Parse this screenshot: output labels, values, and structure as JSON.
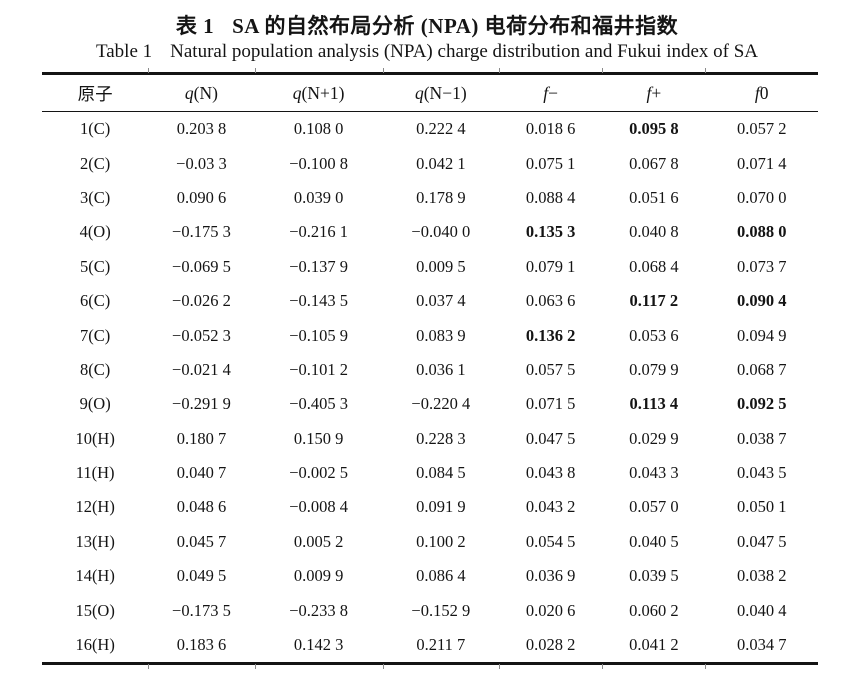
{
  "title_cn": {
    "label": "表 1",
    "text": "SA 的自然布局分析 (NPA) 电荷分布和福井指数"
  },
  "title_en": {
    "label": "Table 1",
    "text": "Natural population analysis (NPA) charge distribution and Fukui index of SA"
  },
  "table": {
    "headers": [
      {
        "italic": "",
        "text": "原子"
      },
      {
        "italic": "q",
        "text": "(N)"
      },
      {
        "italic": "q",
        "text": "(N+1)"
      },
      {
        "italic": "q",
        "text": "(N−1)"
      },
      {
        "italic": "f",
        "text": "−"
      },
      {
        "italic": "f",
        "text": "+"
      },
      {
        "italic": "f",
        "text": "0"
      }
    ],
    "rows": [
      {
        "atom": "1(C)",
        "values": [
          "0.203 8",
          "0.108 0",
          "0.222 4",
          "0.018 6",
          "0.095 8",
          "0.057 2"
        ],
        "bold": [
          4
        ]
      },
      {
        "atom": "2(C)",
        "values": [
          "−0.03 3",
          "−0.100 8",
          "0.042 1",
          "0.075 1",
          "0.067 8",
          "0.071 4"
        ],
        "bold": []
      },
      {
        "atom": "3(C)",
        "values": [
          "0.090 6",
          "0.039 0",
          "0.178 9",
          "0.088 4",
          "0.051 6",
          "0.070 0"
        ],
        "bold": []
      },
      {
        "atom": "4(O)",
        "values": [
          "−0.175 3",
          "−0.216 1",
          "−0.040 0",
          "0.135 3",
          "0.040 8",
          "0.088 0"
        ],
        "bold": [
          3,
          5
        ]
      },
      {
        "atom": "5(C)",
        "values": [
          "−0.069 5",
          "−0.137 9",
          "0.009 5",
          "0.079 1",
          "0.068 4",
          "0.073 7"
        ],
        "bold": []
      },
      {
        "atom": "6(C)",
        "values": [
          "−0.026 2",
          "−0.143 5",
          "0.037 4",
          "0.063 6",
          "0.117 2",
          "0.090 4"
        ],
        "bold": [
          4,
          5
        ]
      },
      {
        "atom": "7(C)",
        "values": [
          "−0.052 3",
          "−0.105 9",
          "0.083 9",
          "0.136 2",
          "0.053 6",
          "0.094 9"
        ],
        "bold": [
          3
        ]
      },
      {
        "atom": "8(C)",
        "values": [
          "−0.021 4",
          "−0.101 2",
          "0.036 1",
          "0.057 5",
          "0.079 9",
          "0.068 7"
        ],
        "bold": []
      },
      {
        "atom": "9(O)",
        "values": [
          "−0.291 9",
          "−0.405 3",
          "−0.220 4",
          "0.071 5",
          "0.113 4",
          "0.092 5"
        ],
        "bold": [
          4,
          5
        ]
      },
      {
        "atom": "10(H)",
        "values": [
          "0.180 7",
          "0.150 9",
          "0.228 3",
          "0.047 5",
          "0.029 9",
          "0.038 7"
        ],
        "bold": []
      },
      {
        "atom": "11(H)",
        "values": [
          "0.040 7",
          "−0.002 5",
          "0.084 5",
          "0.043 8",
          "0.043 3",
          "0.043 5"
        ],
        "bold": []
      },
      {
        "atom": "12(H)",
        "values": [
          "0.048 6",
          "−0.008 4",
          "0.091 9",
          "0.043 2",
          "0.057 0",
          "0.050 1"
        ],
        "bold": []
      },
      {
        "atom": "13(H)",
        "values": [
          "0.045 7",
          "0.005 2",
          "0.100 2",
          "0.054 5",
          "0.040 5",
          "0.047 5"
        ],
        "bold": []
      },
      {
        "atom": "14(H)",
        "values": [
          "0.049 5",
          "0.009 9",
          "0.086 4",
          "0.036 9",
          "0.039 5",
          "0.038 2"
        ],
        "bold": []
      },
      {
        "atom": "15(O)",
        "values": [
          "−0.173 5",
          "−0.233 8",
          "−0.152 9",
          "0.020 6",
          "0.060 2",
          "0.040 4"
        ],
        "bold": []
      },
      {
        "atom": "16(H)",
        "values": [
          "0.183 6",
          "0.142 3",
          "0.211 7",
          "0.028 2",
          "0.041 2",
          "0.034 7"
        ],
        "bold": []
      }
    ]
  }
}
